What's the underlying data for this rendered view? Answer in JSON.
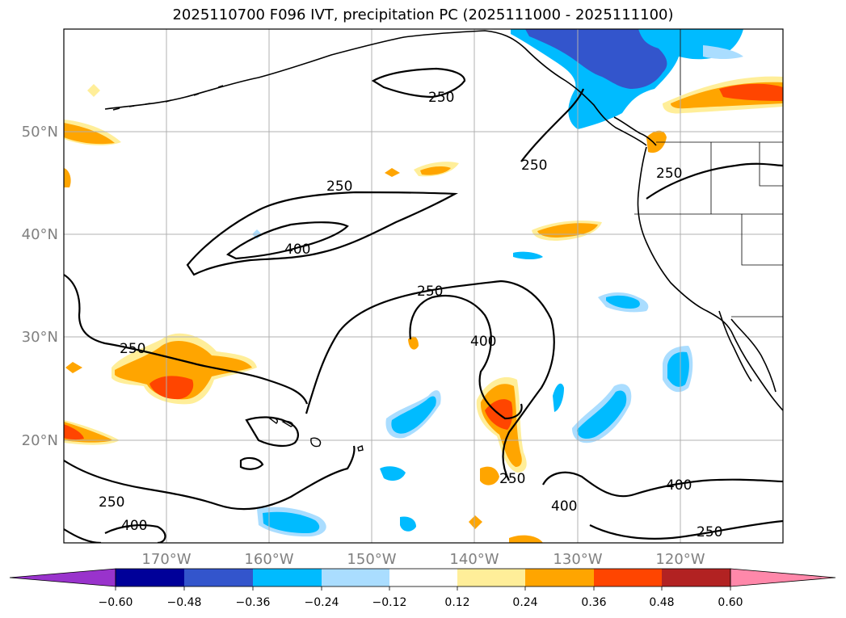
{
  "title": "2025110700 F096 IVT, precipitation PC (2025111000 - 2025111100)",
  "map": {
    "lon_range": [
      -180,
      -110
    ],
    "lat_range": [
      10,
      60
    ],
    "lat_ticks": [
      {
        "value": 20,
        "label": "20°N"
      },
      {
        "value": 30,
        "label": "30°N"
      },
      {
        "value": 40,
        "label": "40°N"
      },
      {
        "value": 50,
        "label": "50°N"
      }
    ],
    "lon_ticks": [
      {
        "value": -170,
        "label": "170°W"
      },
      {
        "value": -160,
        "label": "160°W"
      },
      {
        "value": -150,
        "label": "150°W"
      },
      {
        "value": -140,
        "label": "140°W"
      },
      {
        "value": -130,
        "label": "130°W"
      },
      {
        "value": -120,
        "label": "120°W"
      }
    ],
    "gridlines": true,
    "contour_levels": [
      {
        "level": 250,
        "label": "250"
      },
      {
        "level": 400,
        "label": "400"
      }
    ]
  },
  "colorbar": {
    "extend": "both",
    "colors": [
      "#9933cc",
      "#000099",
      "#3355cc",
      "#00bbff",
      "#aaddff",
      "#ffffff",
      "#ffee99",
      "#ffa500",
      "#ff4500",
      "#b22222",
      "#ff88aa"
    ],
    "ticks": [
      "−0.60",
      "−0.48",
      "−0.36",
      "−0.24",
      "−0.12",
      "0.12",
      "0.24",
      "0.36",
      "0.48",
      "0.60"
    ]
  }
}
